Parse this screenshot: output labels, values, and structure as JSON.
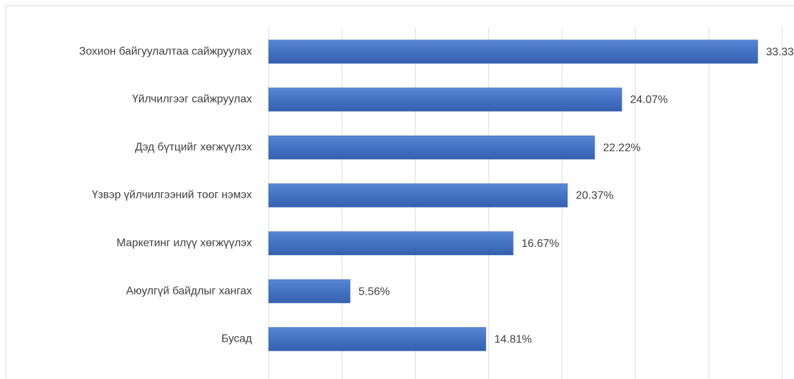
{
  "chart_data": {
    "type": "bar",
    "orientation": "horizontal",
    "categories": [
      "Зохион байгуулалтаа сайжруулах",
      "Үйлчилгээг сайжруулах",
      "Дэд бүтцийг хөгжүүлэх",
      "Үзвэр үйлчилгээний тоог нэмэх",
      "Маркетинг илүү хөгжүүлэх",
      "Аюулгүй байдлыг хангах",
      "Бусад"
    ],
    "values": [
      33.33,
      24.07,
      22.22,
      20.37,
      16.67,
      5.56,
      14.81
    ],
    "value_labels": [
      "33.33%",
      "24.07%",
      "22.22%",
      "20.37%",
      "16.67%",
      "5.56%",
      "14.81%"
    ],
    "color": "#4472c4",
    "xlim": [
      0,
      35
    ],
    "xticks": [
      0,
      5,
      10,
      15,
      20,
      25,
      30,
      35
    ],
    "grid": true
  }
}
